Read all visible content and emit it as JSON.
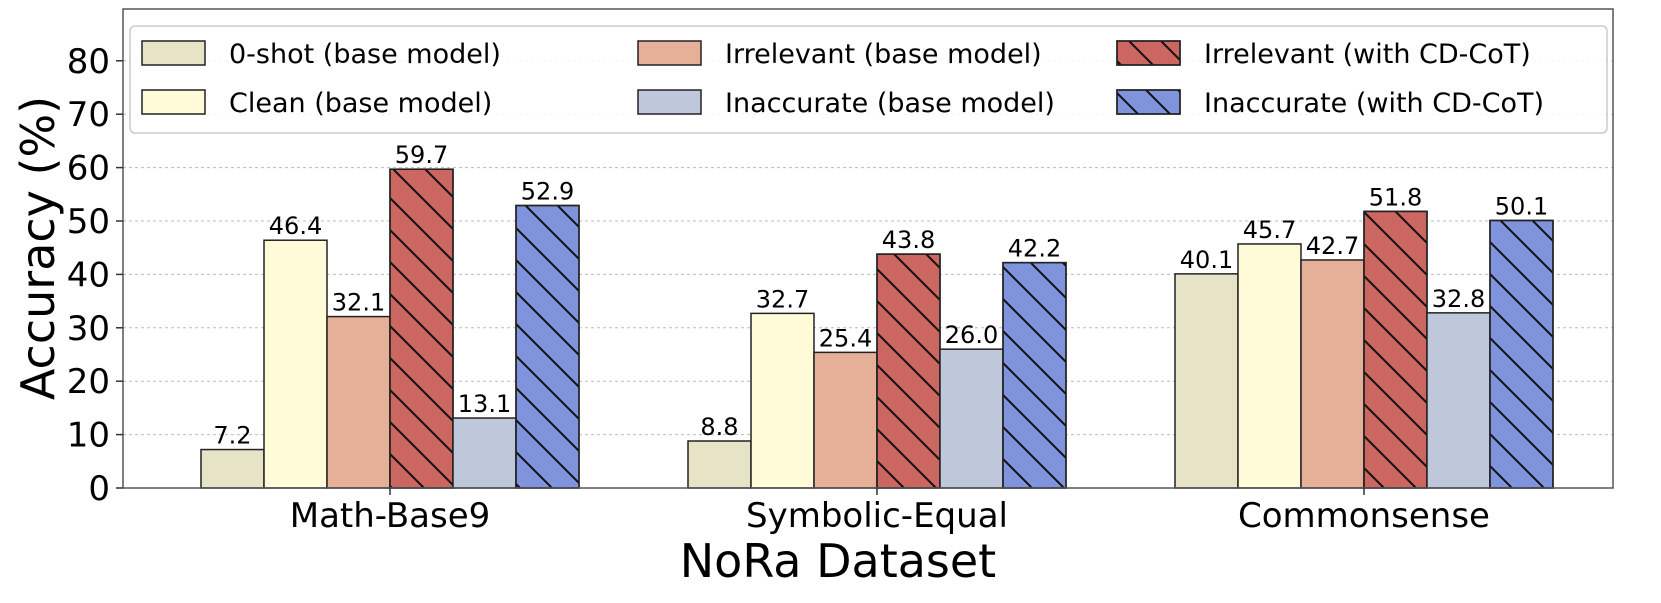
{
  "chart_data": {
    "type": "bar",
    "xlabel": "NoRa Dataset",
    "ylabel": "Accuracy (%)",
    "categories": [
      "Math-Base9",
      "Symbolic-Equal",
      "Commonsense"
    ],
    "ylim": [
      0,
      90
    ],
    "yticks": [
      0,
      10,
      20,
      30,
      40,
      50,
      60,
      70,
      80
    ],
    "grid": true,
    "legend_position": "top",
    "series": [
      {
        "name": "0-shot (base model)",
        "values": [
          7.2,
          8.8,
          40.1
        ],
        "color": "#e6e3c6",
        "hatch": false
      },
      {
        "name": "Clean (base model)",
        "values": [
          46.4,
          32.7,
          45.7
        ],
        "color": "#fffad8",
        "hatch": false
      },
      {
        "name": "Irrelevant (base model)",
        "values": [
          32.1,
          25.4,
          42.7
        ],
        "color": "#e5af98",
        "hatch": false
      },
      {
        "name": "Irrelevant (with CD-CoT)",
        "values": [
          59.7,
          43.8,
          51.8
        ],
        "color": "#cc6660",
        "hatch": true
      },
      {
        "name": "Inaccurate (base model)",
        "values": [
          13.1,
          26.0,
          32.8
        ],
        "color": "#bfc7da",
        "hatch": false
      },
      {
        "name": "Inaccurate (with CD-CoT)",
        "values": [
          52.9,
          42.2,
          50.1
        ],
        "color": "#7f94dc",
        "hatch": true
      }
    ]
  }
}
